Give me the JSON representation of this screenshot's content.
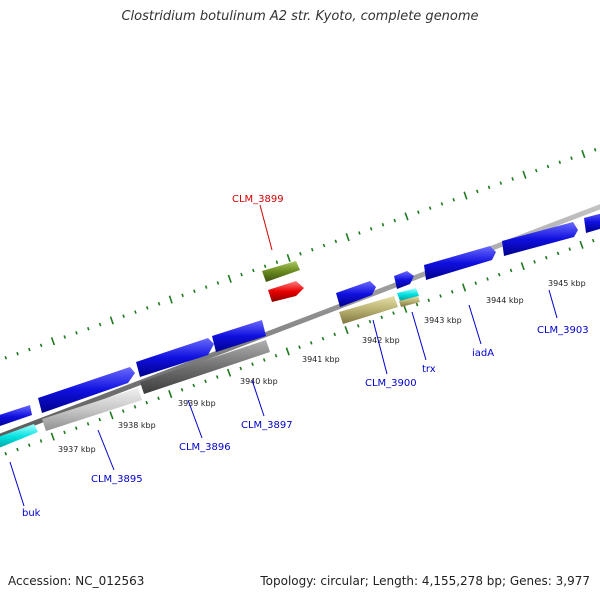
{
  "title": "Clostridium botulinum A2 str. Kyoto, complete genome",
  "footer": {
    "accession": "Accession: NC_012563",
    "summary": "Topology: circular; Length: 4,155,278 bp; Genes: 3,977"
  },
  "scale_labels": [
    "3937 kbp",
    "3938 kbp",
    "3939 kbp",
    "3940 kbp",
    "3941 kbp",
    "3942 kbp",
    "3943 kbp",
    "3944 kbp",
    "3945 kbp"
  ],
  "gene_labels": [
    {
      "text": "CLM_3899",
      "color": "#d40000"
    },
    {
      "text": "CLM_3903",
      "color": "#0000cc"
    },
    {
      "text": "iadA",
      "color": "#0000cc"
    },
    {
      "text": "trx",
      "color": "#0000cc"
    },
    {
      "text": "CLM_3900",
      "color": "#0000cc"
    },
    {
      "text": "CLM_3897",
      "color": "#0000cc"
    },
    {
      "text": "CLM_3896",
      "color": "#0000cc"
    },
    {
      "text": "CLM_3895",
      "color": "#0000cc"
    },
    {
      "text": "buk",
      "color": "#0000cc"
    }
  ],
  "colors": {
    "backbone": "#8c8c8c",
    "tick": "#1e7a1e",
    "cds": "#1010e0",
    "trna": "#00e0e0",
    "pseudo_light": "#c8c8c8",
    "pseudo_dark": "#707070",
    "olive": "#b8b070",
    "green": "#6a8a20",
    "red": "#e80000"
  }
}
